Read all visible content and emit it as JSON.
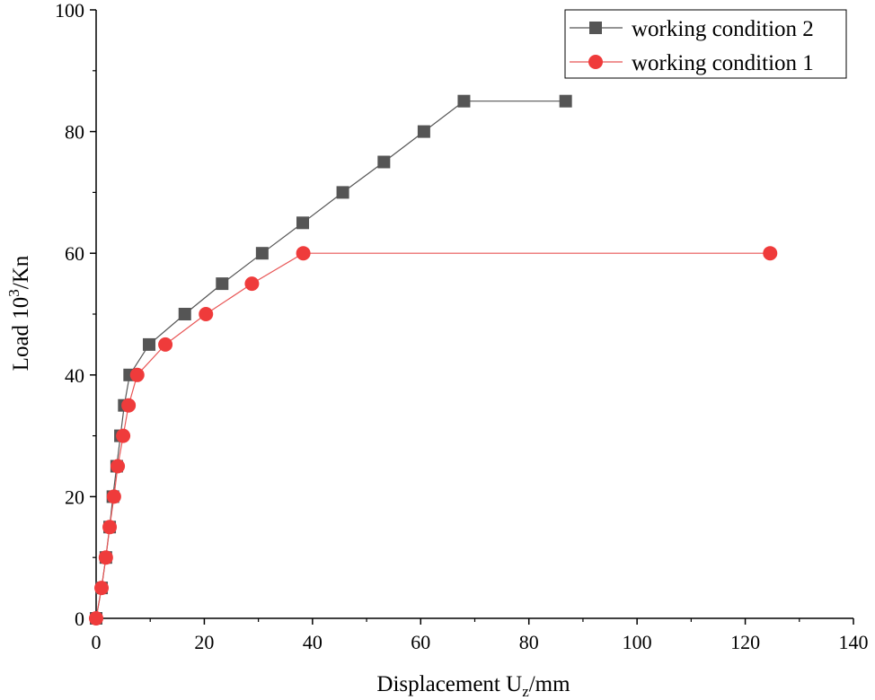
{
  "chart_data": {
    "type": "line",
    "title": "",
    "xlabel": {
      "main": "Displacement U",
      "sub": "z",
      "tail": "/mm"
    },
    "ylabel": {
      "main": "Load 10",
      "sup": "3",
      "tail": "/Kn"
    },
    "xlim": [
      0,
      140
    ],
    "ylim": [
      0,
      100
    ],
    "xticks": [
      0,
      20,
      40,
      60,
      80,
      100,
      120,
      140
    ],
    "yticks": [
      0,
      20,
      40,
      60,
      80,
      100
    ],
    "grid": false,
    "legend_position": "top-right",
    "series": [
      {
        "name": "working condition 2",
        "marker": "square",
        "color": "#555555",
        "line_color": "#555555",
        "points": [
          [
            0,
            0
          ],
          [
            1.0,
            5
          ],
          [
            1.8,
            10
          ],
          [
            2.5,
            15
          ],
          [
            3.1,
            20
          ],
          [
            3.8,
            25
          ],
          [
            4.5,
            30
          ],
          [
            5.2,
            35
          ],
          [
            6.2,
            40
          ],
          [
            9.8,
            45
          ],
          [
            16.4,
            50
          ],
          [
            23.3,
            55
          ],
          [
            30.7,
            60
          ],
          [
            38.2,
            65
          ],
          [
            45.6,
            70
          ],
          [
            53.2,
            75
          ],
          [
            60.6,
            80
          ],
          [
            68.0,
            85
          ],
          [
            86.8,
            85
          ]
        ]
      },
      {
        "name": "working condition 1",
        "marker": "circle",
        "color": "#ef3b3b",
        "line_color": "#e85555",
        "points": [
          [
            0,
            0
          ],
          [
            1.0,
            5
          ],
          [
            1.8,
            10
          ],
          [
            2.5,
            15
          ],
          [
            3.3,
            20
          ],
          [
            4.0,
            25
          ],
          [
            5.0,
            30
          ],
          [
            6.0,
            35
          ],
          [
            7.6,
            40
          ],
          [
            12.8,
            45
          ],
          [
            20.3,
            50
          ],
          [
            28.8,
            55
          ],
          [
            38.3,
            60
          ],
          [
            124.6,
            60
          ]
        ]
      }
    ]
  }
}
